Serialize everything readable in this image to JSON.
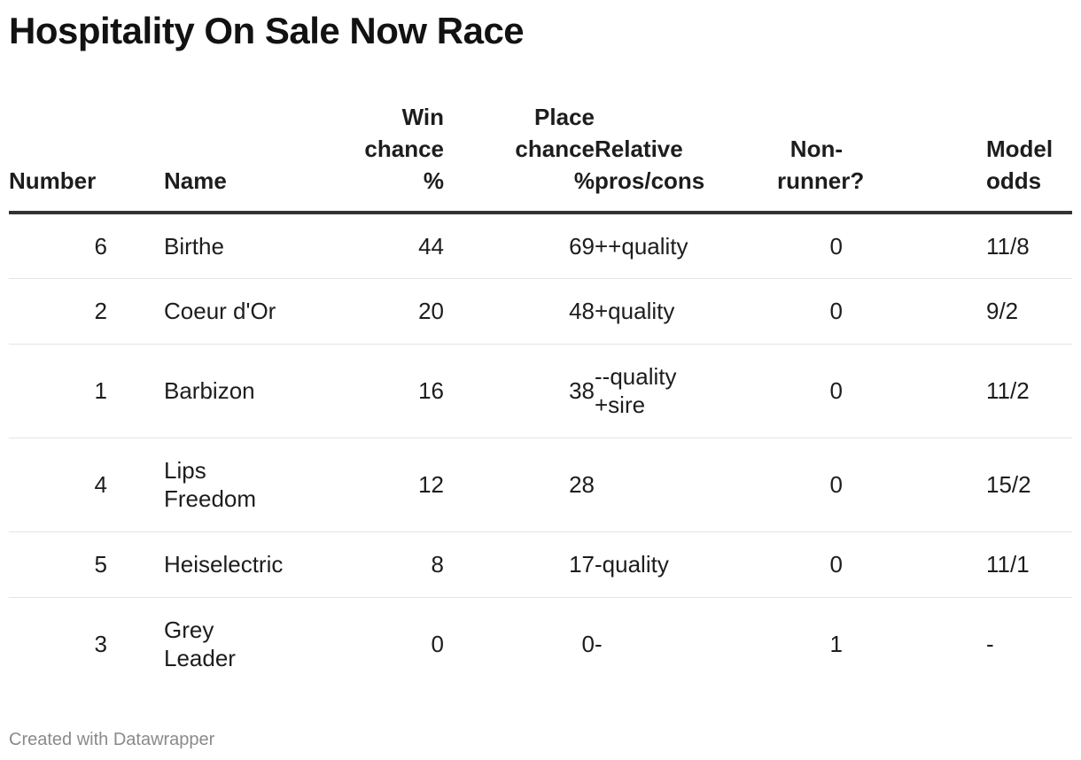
{
  "title": "Hospitality On Sale Now Race",
  "columns": {
    "number": "Number",
    "name": "Name",
    "win": [
      "Win",
      "chance",
      "%"
    ],
    "place": [
      "Place",
      "chance",
      "%"
    ],
    "pros": [
      "Relative",
      "pros/cons"
    ],
    "nonrunner": [
      "Non-",
      "runner?"
    ],
    "odds": [
      "Model",
      "odds"
    ]
  },
  "rows": [
    {
      "number": "6",
      "name": [
        "Birthe"
      ],
      "win": "44",
      "place": "69",
      "pros": [
        "++quality"
      ],
      "nonrunner": "0",
      "odds": "11/8"
    },
    {
      "number": "2",
      "name": [
        "Coeur d'Or"
      ],
      "win": "20",
      "place": "48",
      "pros": [
        "+quality"
      ],
      "nonrunner": "0",
      "odds": "9/2"
    },
    {
      "number": "1",
      "name": [
        "Barbizon"
      ],
      "win": "16",
      "place": "38",
      "pros": [
        "--quality",
        "+sire"
      ],
      "nonrunner": "0",
      "odds": "11/2"
    },
    {
      "number": "4",
      "name": [
        "Lips",
        "Freedom"
      ],
      "win": "12",
      "place": "28",
      "pros": [],
      "nonrunner": "0",
      "odds": "15/2"
    },
    {
      "number": "5",
      "name": [
        "Heiselectric"
      ],
      "win": "8",
      "place": "17",
      "pros": [
        "-quality"
      ],
      "nonrunner": "0",
      "odds": "11/1"
    },
    {
      "number": "3",
      "name": [
        "Grey",
        "Leader"
      ],
      "win": "0",
      "place": "0",
      "pros": [
        "-"
      ],
      "nonrunner": "1",
      "odds": "-"
    }
  ],
  "chart_data": {
    "type": "table",
    "title": "Hospitality On Sale Now Race",
    "columns": [
      "Number",
      "Name",
      "Win chance %",
      "Place chance %",
      "Relative pros/cons",
      "Non-runner?",
      "Model odds"
    ],
    "rows": [
      [
        6,
        "Birthe",
        44,
        69,
        "++quality",
        0,
        "11/8"
      ],
      [
        2,
        "Coeur d'Or",
        20,
        48,
        "+quality",
        0,
        "9/2"
      ],
      [
        1,
        "Barbizon",
        16,
        38,
        "--quality +sire",
        0,
        "11/2"
      ],
      [
        4,
        "Lips Freedom",
        12,
        28,
        "",
        0,
        "15/2"
      ],
      [
        5,
        "Heiselectric",
        8,
        17,
        "-quality",
        0,
        "11/1"
      ],
      [
        3,
        "Grey Leader",
        0,
        0,
        "-",
        1,
        "-"
      ]
    ]
  },
  "footer": "Created with Datawrapper",
  "colors": {
    "text": "#1d1d1d",
    "header_rule": "#333333",
    "row_rule": "#e4e4e4",
    "footer": "#8a8a8a"
  }
}
